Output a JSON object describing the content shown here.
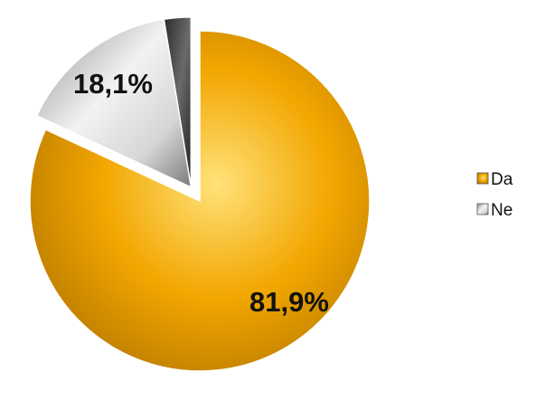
{
  "chart_data": {
    "type": "pie",
    "title": "",
    "legend_position": "right",
    "slices": [
      {
        "name": "Da",
        "value": 81.9,
        "label": "81,9%",
        "color": "#F2A600",
        "exploded": false
      },
      {
        "name": "Ne",
        "value": 18.1,
        "label": "18,1%",
        "color": "#C8C8C8",
        "exploded": true
      }
    ],
    "legend": [
      "Da",
      "Ne"
    ]
  }
}
